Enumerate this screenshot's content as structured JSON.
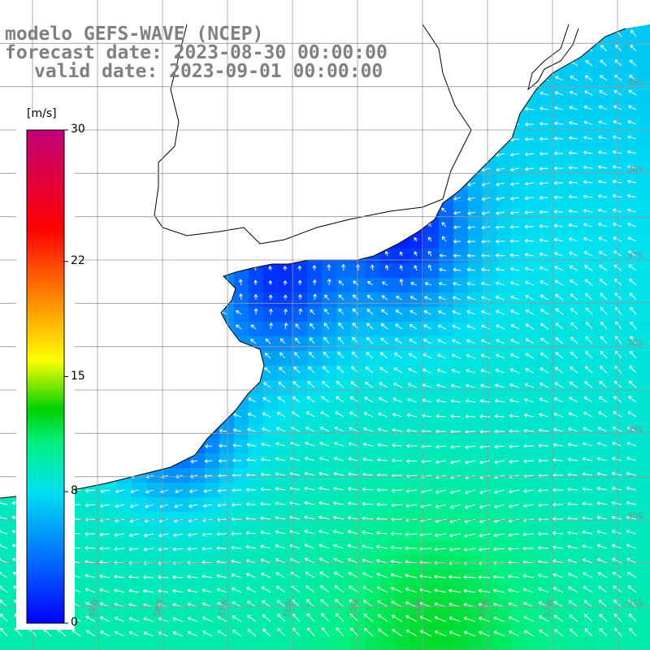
{
  "title": {
    "model": "modelo GEFS-WAVE (NCEP)",
    "forecast": "forecast date: 2023-08-30 00:00:00",
    "valid": "valid date: 2023-09-01 00:00:00"
  },
  "colorbar": {
    "unit": "[m/s]",
    "min": 0,
    "max": 30,
    "ticks": [
      {
        "value": 30,
        "label": "30"
      },
      {
        "value": 22,
        "label": "22"
      },
      {
        "value": 15,
        "label": "15"
      },
      {
        "value": 8,
        "label": "8"
      },
      {
        "value": 0,
        "label": "0"
      }
    ],
    "stops": [
      {
        "value": 0,
        "color": "#0000ff"
      },
      {
        "value": 4,
        "color": "#0070ff"
      },
      {
        "value": 8,
        "color": "#00e0f0"
      },
      {
        "value": 11,
        "color": "#00f080"
      },
      {
        "value": 13,
        "color": "#00d000"
      },
      {
        "value": 16,
        "color": "#ffff00"
      },
      {
        "value": 20,
        "color": "#ff8000"
      },
      {
        "value": 24,
        "color": "#ff0000"
      },
      {
        "value": 30,
        "color": "#c00078"
      }
    ]
  },
  "map": {
    "lat_labels": [
      "35S",
      "36S",
      "37S",
      "38S",
      "39S",
      "40S",
      "41S"
    ],
    "lon_labels": [
      "60W",
      "59W",
      "58W",
      "57W",
      "56W",
      "55W",
      "54W",
      "53W",
      "52W"
    ],
    "land_color": "#ffffff",
    "grid_color": "#999999",
    "coast_color": "#000000",
    "arrow_color": "#ffffff"
  },
  "chart_data": {
    "type": "heatmap",
    "variable": "wind speed with direction arrows",
    "unit": "[m/s]",
    "value_range": [
      0,
      30
    ],
    "lat_range_deg_south": [
      34,
      41.5
    ],
    "lon_range_deg_west": [
      50.5,
      60.5
    ],
    "calm_centers": [
      {
        "lat": -36.6,
        "lon": -54.3,
        "speed": 1.5
      },
      {
        "lat": -37.2,
        "lon": -56.2,
        "speed": 2.0
      },
      {
        "lat": -38.8,
        "lon": -57.8,
        "speed": 2.0
      }
    ],
    "strong_region": {
      "lat": -41.2,
      "lon": -53.8,
      "speed": 11
    }
  }
}
